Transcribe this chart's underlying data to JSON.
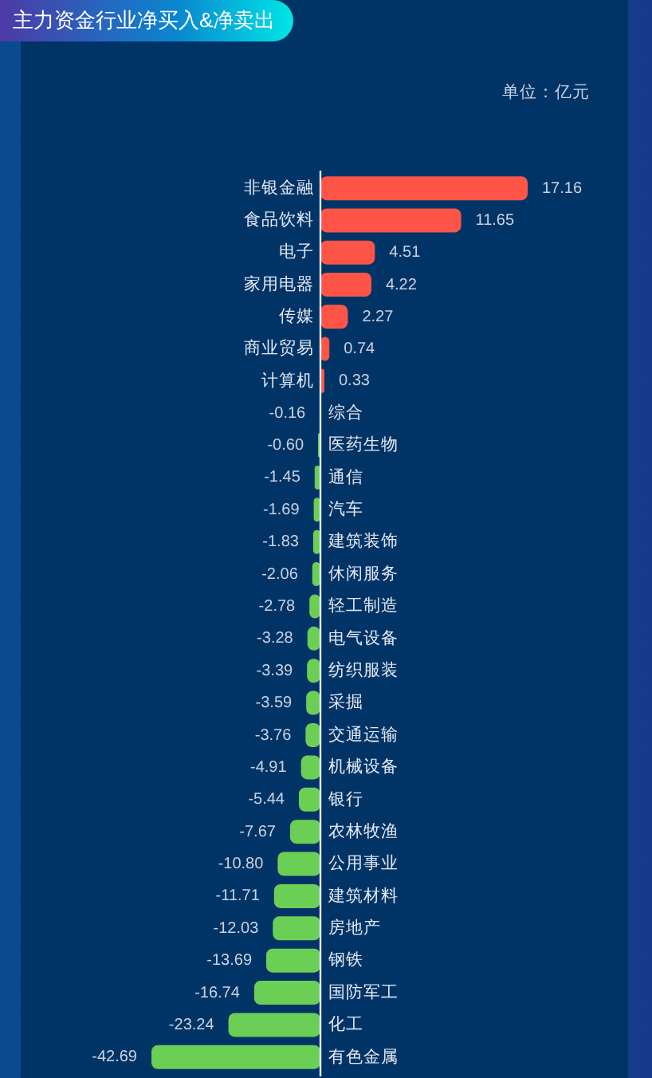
{
  "chart_data": [
    {
      "type": "bar",
      "orientation": "horizontal",
      "title": "主力资金行业净买入&净卖出",
      "annotations": [
        "单位：亿元"
      ],
      "categories": [
        "非银金融",
        "食品饮料",
        "电子",
        "家用电器",
        "传媒",
        "商业贸易",
        "计算机"
      ],
      "values": [
        17.16,
        11.65,
        4.51,
        4.22,
        2.27,
        0.74,
        0.33
      ],
      "value_labels": [
        "17.16",
        "11.65",
        "4.51",
        "4.22",
        "2.27",
        "0.74",
        "0.33"
      ],
      "color": "#ff5548",
      "tick_labels": "y"
    },
    {
      "type": "bar",
      "orientation": "horizontal",
      "categories": [
        "综合",
        "医药生物",
        "通信",
        "汽车",
        "建筑装饰",
        "休闲服务",
        "轻工制造",
        "电气设备",
        "纺织服装",
        "采掘",
        "交通运输",
        "机械设备",
        "银行",
        "农林牧渔",
        "公用事业",
        "建筑材料",
        "房地产",
        "钢铁",
        "国防军工",
        "化工",
        "有色金属"
      ],
      "values": [
        -0.16,
        -0.6,
        -1.45,
        -1.69,
        -1.83,
        -2.06,
        -2.78,
        -3.28,
        -3.39,
        -3.59,
        -3.76,
        -4.91,
        -5.44,
        -7.67,
        -10.8,
        -11.71,
        -12.03,
        -13.69,
        -16.74,
        -23.24,
        -42.69
      ],
      "value_labels": [
        "-0.16",
        "-0.60",
        "-1.45",
        "-1.69",
        "-1.83",
        "-2.06",
        "-2.78",
        "-3.28",
        "-3.39",
        "-3.59",
        "-3.76",
        "-4.91",
        "-5.44",
        "-7.67",
        "-10.80",
        "-11.71",
        "-12.03",
        "-13.69",
        "-16.74",
        "-23.24",
        "-42.69"
      ],
      "color": "#6ccf55",
      "tick_labels": "y"
    }
  ]
}
